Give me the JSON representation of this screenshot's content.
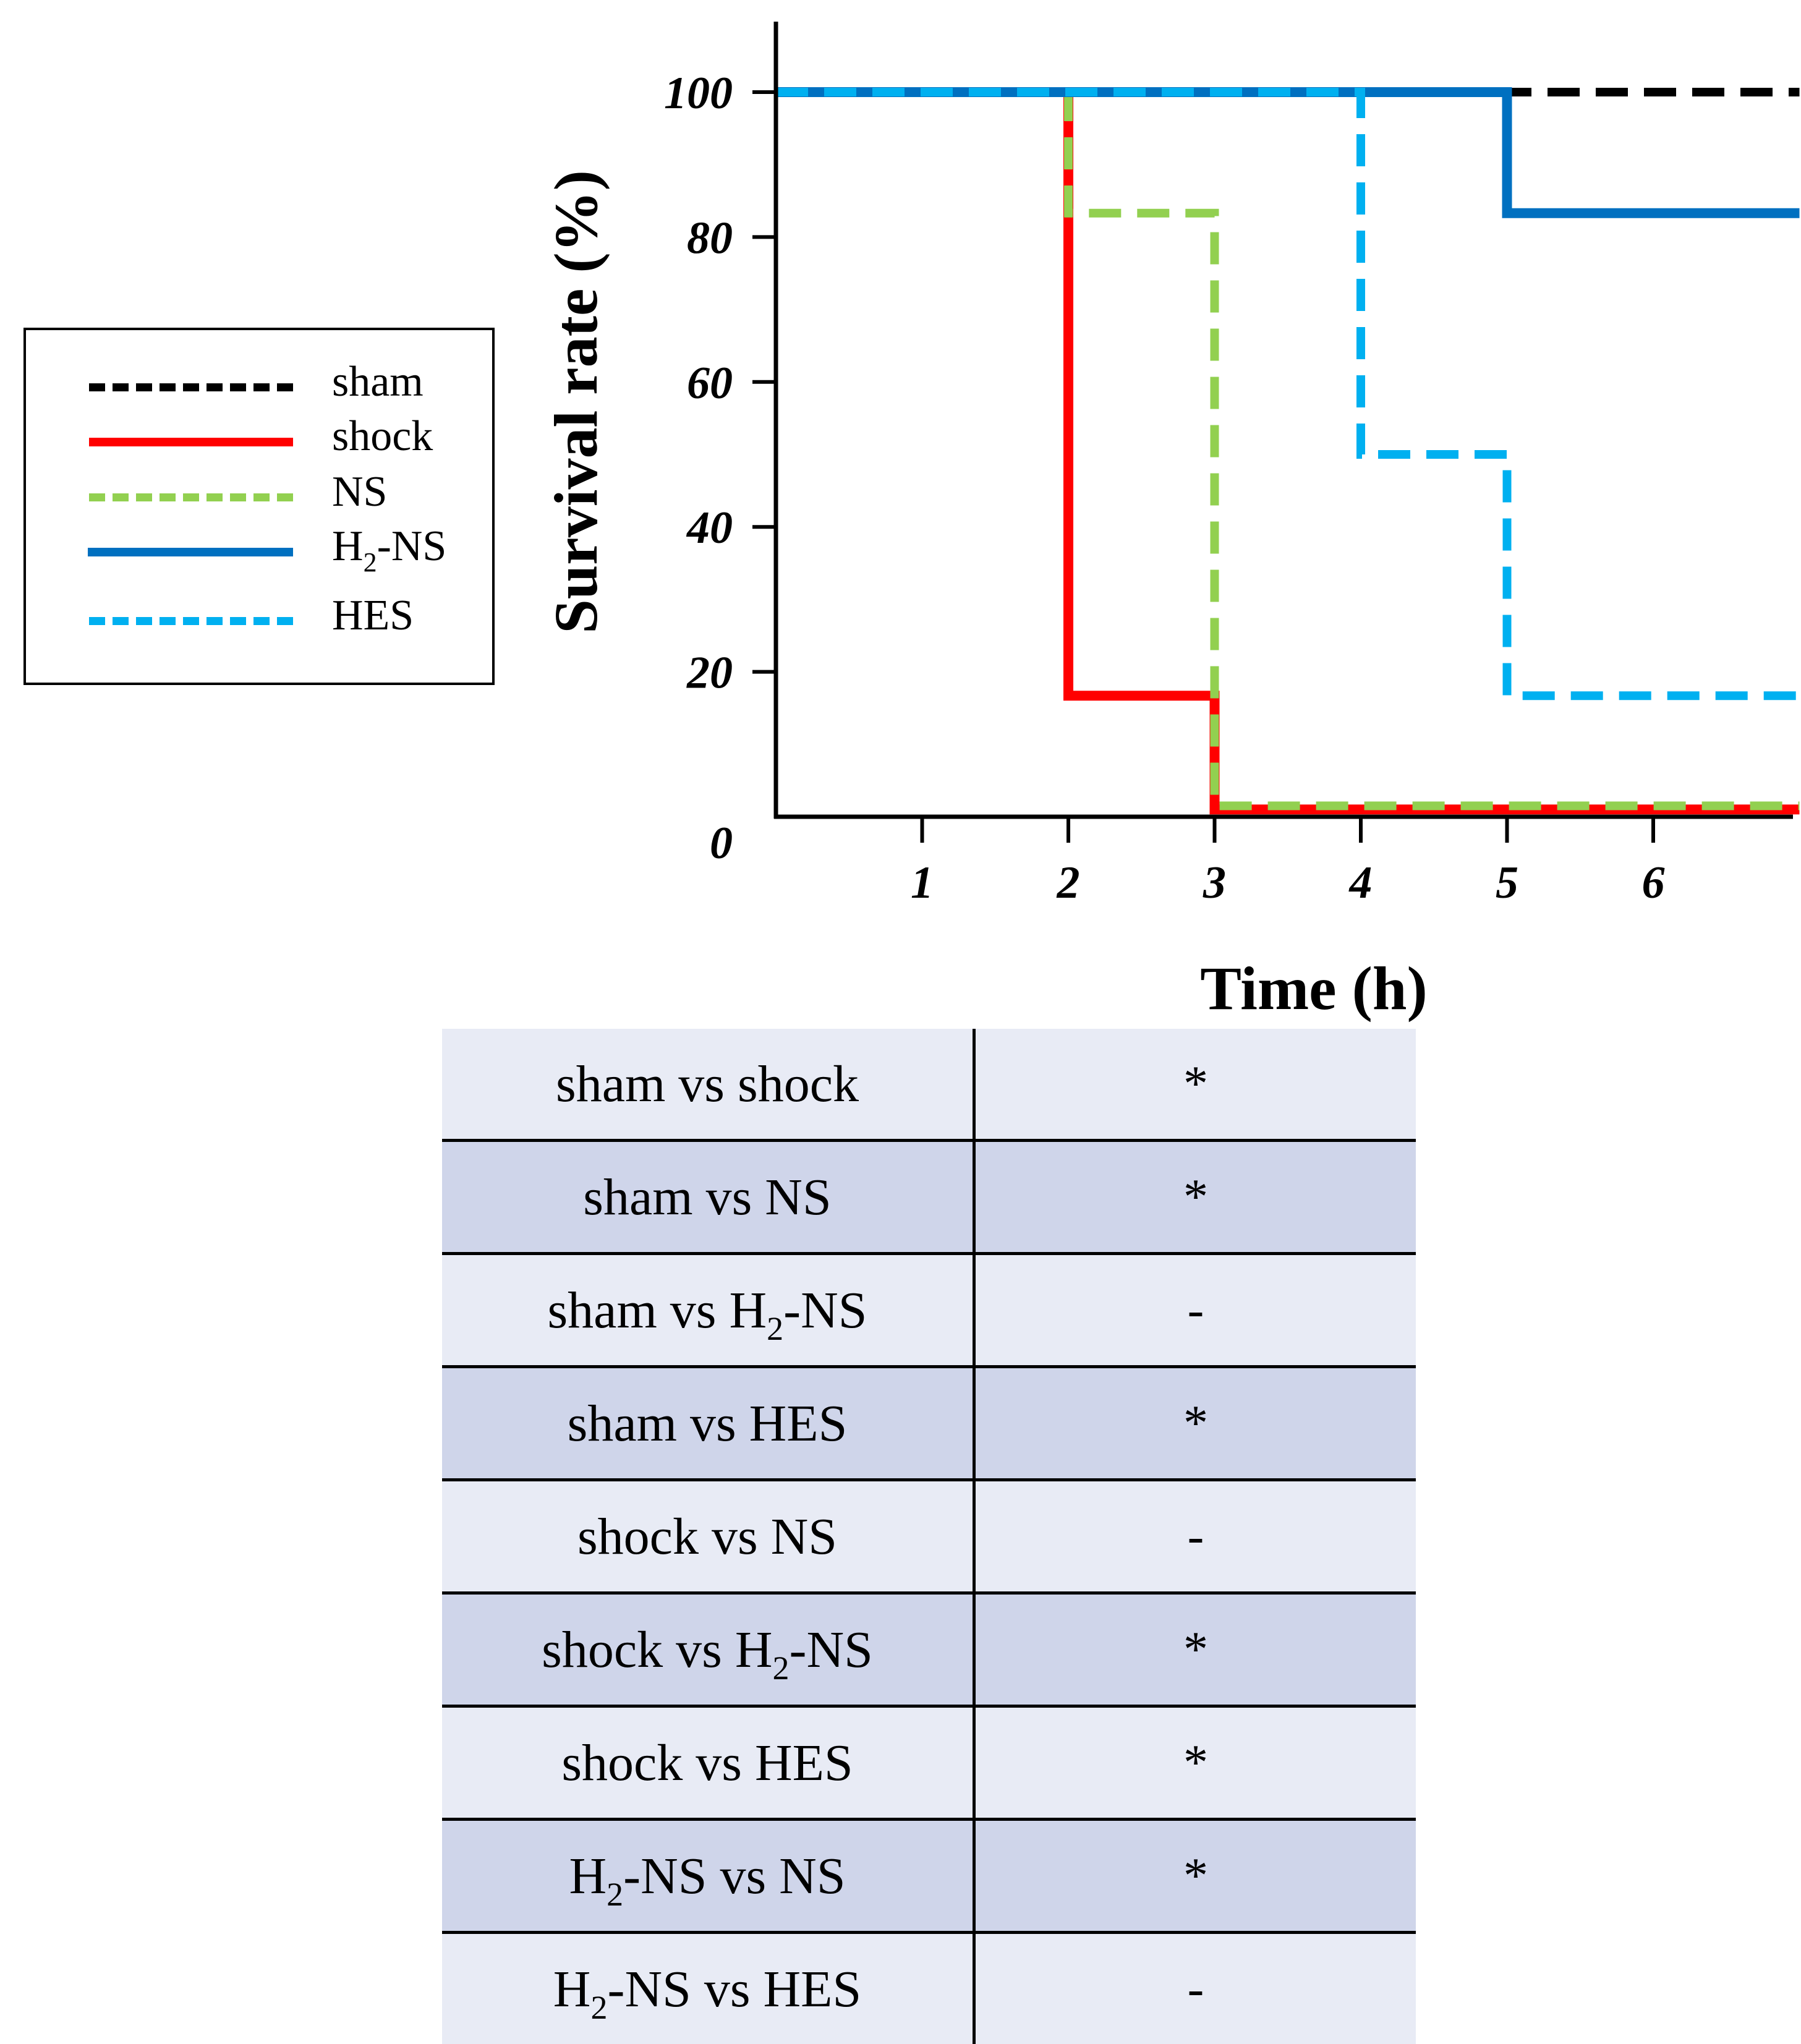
{
  "chart_data": {
    "type": "line",
    "step": true,
    "xlabel": "Time (h)",
    "ylabel": "Survival rate (%)",
    "xlim": [
      0,
      7
    ],
    "ylim": [
      0,
      110
    ],
    "xticks": [
      "1",
      "2",
      "3",
      "4",
      "5",
      "6"
    ],
    "yticks": [
      "0",
      "20",
      "40",
      "60",
      "80",
      "100"
    ],
    "legend_position": "left",
    "series": [
      {
        "key": "sham",
        "name": "sham",
        "sub": "",
        "suffix": "",
        "color": "#000000",
        "dash": true,
        "x": [
          0,
          7
        ],
        "y": [
          100,
          100
        ]
      },
      {
        "key": "shock",
        "name": "shock",
        "sub": "",
        "suffix": "",
        "color": "#ff0000",
        "dash": false,
        "x": [
          0,
          2,
          2,
          3,
          3,
          7
        ],
        "y": [
          100,
          100,
          16.7,
          16.7,
          1,
          1
        ]
      },
      {
        "key": "NS",
        "name": "NS",
        "sub": "",
        "suffix": "",
        "color": "#92d050",
        "dash": true,
        "x": [
          0,
          2,
          2,
          3,
          3,
          7
        ],
        "y": [
          100,
          100,
          83.3,
          83.3,
          1.5,
          1.5
        ]
      },
      {
        "key": "H2NS",
        "name": "H",
        "sub": "2",
        "suffix": "-NS",
        "color": "#0070c0",
        "dash": false,
        "x": [
          0,
          5,
          5,
          7
        ],
        "y": [
          100,
          100,
          83.3,
          83.3
        ]
      },
      {
        "key": "HES",
        "name": "HES",
        "sub": "",
        "suffix": "",
        "color": "#00b0f0",
        "dash": true,
        "x": [
          0,
          4,
          4,
          5,
          5,
          7
        ],
        "y": [
          100,
          100,
          50,
          50,
          16.7,
          16.7
        ]
      }
    ]
  },
  "table": {
    "rows": [
      {
        "pair": {
          "a": "sham vs shock",
          "sub": "",
          "c": ""
        },
        "sig": "*"
      },
      {
        "pair": {
          "a": "sham vs NS",
          "sub": "",
          "c": ""
        },
        "sig": "*"
      },
      {
        "pair": {
          "a": "sham vs H",
          "sub": "2",
          "c": "-NS"
        },
        "sig": "-"
      },
      {
        "pair": {
          "a": "sham vs HES",
          "sub": "",
          "c": ""
        },
        "sig": "*"
      },
      {
        "pair": {
          "a": "shock vs NS",
          "sub": "",
          "c": ""
        },
        "sig": "-"
      },
      {
        "pair": {
          "a": "shock vs H",
          "sub": "2",
          "c": "-NS"
        },
        "sig": "*"
      },
      {
        "pair": {
          "a": "shock vs HES",
          "sub": "",
          "c": ""
        },
        "sig": "*"
      },
      {
        "pair": {
          "a": "H",
          "sub": "2",
          "c": "-NS vs NS"
        },
        "sig": "*"
      },
      {
        "pair": {
          "a": "H",
          "sub": "2",
          "c": "-NS vs HES"
        },
        "sig": "-"
      }
    ],
    "row_colors": [
      "#e8ebf5",
      "#cfd5ea"
    ]
  }
}
